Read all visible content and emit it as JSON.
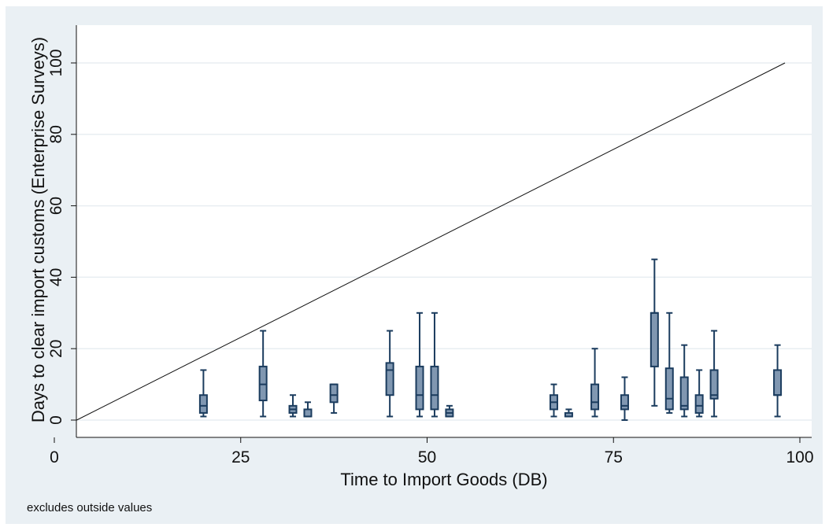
{
  "chart_data": {
    "type": "box",
    "xlabel": "Time to Import Goods (DB)",
    "ylabel": "Days to clear import customs (Enterprise Surveys)",
    "note": "excludes outside values",
    "xlim": [
      0,
      100
    ],
    "ylim": [
      0,
      100
    ],
    "x_ticks": [
      0,
      25,
      50,
      75,
      100
    ],
    "y_ticks": [
      0,
      20,
      40,
      60,
      80,
      100
    ],
    "grid": true,
    "reference_line": {
      "x": [
        3,
        98
      ],
      "y": [
        0,
        100
      ]
    },
    "box_color": "#8097b1",
    "line_color": "#1b3c5e",
    "boxes": [
      {
        "x": 20,
        "min": 1,
        "q1": 2,
        "median": 4,
        "q3": 7,
        "max": 14
      },
      {
        "x": 28,
        "min": 1,
        "q1": 5.5,
        "median": 10,
        "q3": 15,
        "max": 25
      },
      {
        "x": 32,
        "min": 1,
        "q1": 2,
        "median": 3,
        "q3": 4,
        "max": 7
      },
      {
        "x": 34,
        "min": 1,
        "q1": 1,
        "median": 1,
        "q3": 3,
        "max": 5
      },
      {
        "x": 37.5,
        "min": 2,
        "q1": 5,
        "median": 7,
        "q3": 10,
        "max": 10
      },
      {
        "x": 45,
        "min": 1,
        "q1": 7,
        "median": 14,
        "q3": 16,
        "max": 25
      },
      {
        "x": 49,
        "min": 1,
        "q1": 3,
        "median": 7,
        "q3": 15,
        "max": 30
      },
      {
        "x": 51,
        "min": 1,
        "q1": 3,
        "median": 7,
        "q3": 15,
        "max": 30
      },
      {
        "x": 53,
        "min": 1,
        "q1": 1,
        "median": 2,
        "q3": 3,
        "max": 4
      },
      {
        "x": 67,
        "min": 1,
        "q1": 3,
        "median": 5,
        "q3": 7,
        "max": 10
      },
      {
        "x": 69,
        "min": 1,
        "q1": 1,
        "median": 1,
        "q3": 2,
        "max": 3
      },
      {
        "x": 72.5,
        "min": 1,
        "q1": 3,
        "median": 5,
        "q3": 10,
        "max": 20
      },
      {
        "x": 76.5,
        "min": 0,
        "q1": 3,
        "median": 4,
        "q3": 7,
        "max": 12
      },
      {
        "x": 80.5,
        "min": 4,
        "q1": 15,
        "median": 30,
        "q3": 30,
        "max": 45
      },
      {
        "x": 82.5,
        "min": 2,
        "q1": 3,
        "median": 6,
        "q3": 14.5,
        "max": 30
      },
      {
        "x": 84.5,
        "min": 1,
        "q1": 3,
        "median": 4,
        "q3": 12,
        "max": 21
      },
      {
        "x": 86.5,
        "min": 1,
        "q1": 2,
        "median": 4,
        "q3": 7,
        "max": 14
      },
      {
        "x": 88.5,
        "min": 1,
        "q1": 6,
        "median": 7,
        "q3": 14,
        "max": 25
      },
      {
        "x": 97,
        "min": 1,
        "q1": 7,
        "median": 7,
        "q3": 14,
        "max": 21
      }
    ]
  }
}
